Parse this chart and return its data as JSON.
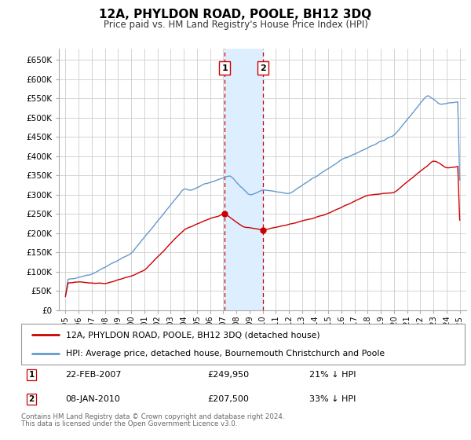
{
  "title": "12A, PHYLDON ROAD, POOLE, BH12 3DQ",
  "subtitle": "Price paid vs. HM Land Registry's House Price Index (HPI)",
  "legend_line1": "12A, PHYLDON ROAD, POOLE, BH12 3DQ (detached house)",
  "legend_line2": "HPI: Average price, detached house, Bournemouth Christchurch and Poole",
  "footer_line1": "Contains HM Land Registry data © Crown copyright and database right 2024.",
  "footer_line2": "This data is licensed under the Open Government Licence v3.0.",
  "sale1_date": "22-FEB-2007",
  "sale1_price": "£249,950",
  "sale1_hpi": "21% ↓ HPI",
  "sale1_date_num": 2007.13,
  "sale1_price_val": 249950,
  "sale2_date": "08-JAN-2010",
  "sale2_price": "£207,500",
  "sale2_hpi": "33% ↓ HPI",
  "sale2_date_num": 2010.03,
  "sale2_price_val": 207500,
  "hpi_color": "#6699cc",
  "property_color": "#cc0000",
  "highlight_color": "#ddeeff",
  "grid_color": "#cccccc",
  "ylim": [
    0,
    680000
  ],
  "yticks": [
    0,
    50000,
    100000,
    150000,
    200000,
    250000,
    300000,
    350000,
    400000,
    450000,
    500000,
    550000,
    600000,
    650000
  ],
  "xlim_start": 1994.5,
  "xlim_end": 2025.5,
  "background_color": "#ffffff"
}
